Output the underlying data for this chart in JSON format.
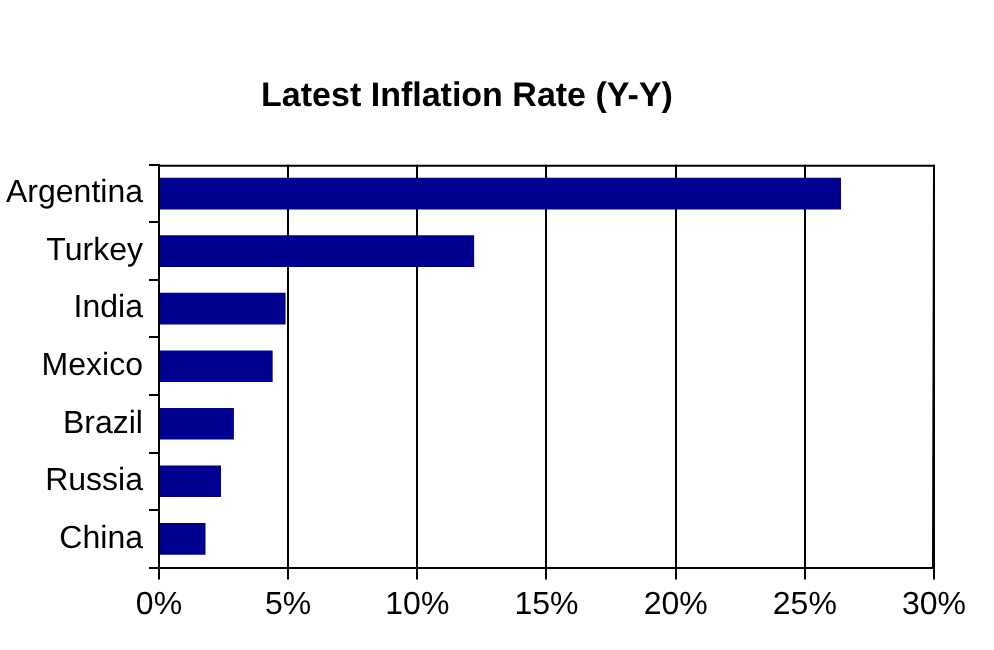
{
  "chart_data": {
    "type": "bar",
    "orientation": "horizontal",
    "title": "Latest Inflation Rate (Y-Y)",
    "categories": [
      "Argentina",
      "Turkey",
      "India",
      "Mexico",
      "Brazil",
      "Russia",
      "China"
    ],
    "values": [
      26.4,
      12.2,
      4.9,
      4.4,
      2.9,
      2.4,
      1.8
    ],
    "color": "#000090",
    "xlim": [
      0,
      30
    ],
    "xticks": [
      {
        "value": 0,
        "label": "0%"
      },
      {
        "value": 5,
        "label": "5%"
      },
      {
        "value": 10,
        "label": "10%"
      },
      {
        "value": 15,
        "label": "15%"
      },
      {
        "value": 20,
        "label": "20%"
      },
      {
        "value": 25,
        "label": "25%"
      },
      {
        "value": 30,
        "label": "30%"
      }
    ],
    "grid": "x"
  }
}
